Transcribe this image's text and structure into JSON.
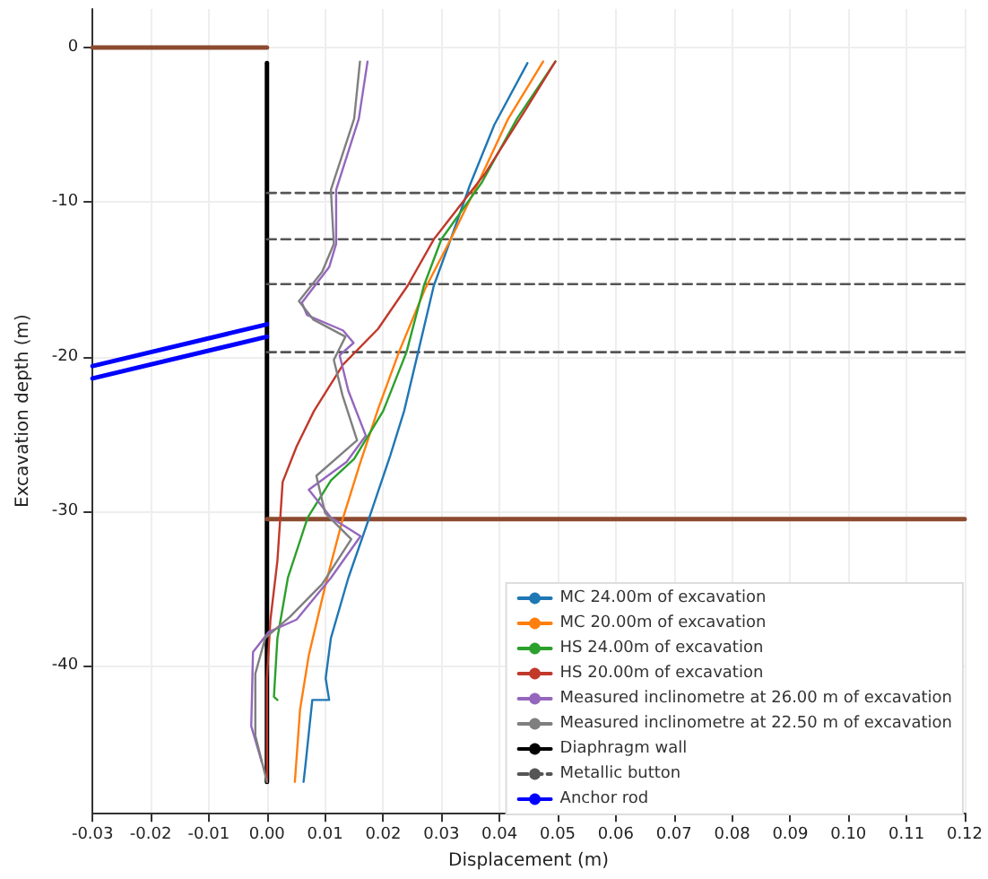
{
  "chart_data": {
    "type": "line",
    "xlabel": "Displacement (m)",
    "ylabel": "Excavation depth (m)",
    "xlim": [
      -0.03,
      0.12
    ],
    "xticks": [
      {
        "value": -0.03,
        "label": "-0.03"
      },
      {
        "value": -0.02,
        "label": "-0.02"
      },
      {
        "value": -0.01,
        "label": "-0.01"
      },
      {
        "value": 0,
        "label": "0.00"
      },
      {
        "value": 0.01,
        "label": "0.01"
      },
      {
        "value": 0.02,
        "label": "0.02"
      },
      {
        "value": 0.03,
        "label": "0.03"
      },
      {
        "value": 0.04,
        "label": "0.04"
      },
      {
        "value": 0.05,
        "label": "0.05"
      },
      {
        "value": 0.06,
        "label": "0.06"
      },
      {
        "value": 0.07,
        "label": "0.07"
      },
      {
        "value": 0.08,
        "label": "0.08"
      },
      {
        "value": 0.09,
        "label": "0.09"
      },
      {
        "value": 0.1,
        "label": "0.10"
      },
      {
        "value": 0.11,
        "label": "0.11"
      },
      {
        "value": 0.12,
        "label": "0.12"
      }
    ],
    "ylim": [
      -49.5,
      2.5
    ],
    "yticks": [
      0,
      -10,
      -20,
      -30,
      -40
    ],
    "grid": true,
    "legend": "bottom right",
    "marker": "none",
    "line_style": "solid",
    "series": [
      {
        "name": "MC 24.00m of excavation",
        "color": "#1f77b4",
        "x": [
          0.0448,
          0.0391,
          0.0349,
          0.0316,
          0.0287,
          0.026,
          0.0236,
          0.0212,
          0.0176,
          0.014,
          0.011,
          0.0101,
          0.0107,
          0.0078,
          0.0066,
          0.0063
        ],
        "values": [
          -1.0,
          -5.0,
          -8.9,
          -12.4,
          -15.4,
          -19.7,
          -23.5,
          -26.4,
          -30.4,
          -34.3,
          -38.2,
          -40.8,
          -42.2,
          -42.2,
          -46.5,
          -47.5
        ]
      },
      {
        "name": "MC 20.00m of excavation",
        "color": "#ff7f0e",
        "x": [
          0.0475,
          0.0415,
          0.0364,
          0.0316,
          0.0272,
          0.0227,
          0.0191,
          0.0161,
          0.0131,
          0.0101,
          0.0072,
          0.0057,
          0.0048
        ],
        "values": [
          -0.9,
          -4.6,
          -8.7,
          -12.4,
          -15.6,
          -19.7,
          -23.4,
          -26.8,
          -30.4,
          -34.7,
          -39.3,
          -42.8,
          -47.5
        ]
      },
      {
        "name": "HS 24.00m of excavation",
        "color": "#2ca02c",
        "x": [
          0.0496,
          0.043,
          0.037,
          0.03,
          0.027,
          0.024,
          0.02,
          0.015,
          0.011,
          0.007,
          0.0036,
          0.0018,
          0.0012,
          0.0018
        ],
        "values": [
          -0.9,
          -4.6,
          -8.7,
          -12.4,
          -15.4,
          -19.7,
          -23.5,
          -26.6,
          -28.0,
          -30.4,
          -34.3,
          -38.2,
          -42.0,
          -42.2
        ]
      },
      {
        "name": "HS 20.00m of excavation",
        "color": "#c0392b",
        "x": [
          0.0496,
          0.0445,
          0.0376,
          0.0287,
          0.0242,
          0.0191,
          0.0131,
          0.0081,
          0.0051,
          0.0027,
          0.0018,
          0.0006,
          0.0,
          0.0
        ],
        "values": [
          -0.9,
          -4.0,
          -8.1,
          -12.4,
          -15.4,
          -18.2,
          -20.5,
          -23.5,
          -25.8,
          -28.1,
          -33.2,
          -37.0,
          -40.8,
          -47.5
        ]
      },
      {
        "name": "Measured inclinometre at 26.00 m of excavation",
        "color": "#9467bd",
        "x": [
          0.0173,
          0.0158,
          0.0119,
          0.0119,
          0.0107,
          0.006,
          0.0069,
          0.0131,
          0.0149,
          0.0125,
          0.014,
          0.017,
          0.0137,
          0.0072,
          0.011,
          0.0161,
          0.011,
          0.0051,
          0.0003,
          -0.0024,
          -0.0027,
          -0.0009
        ],
        "values": [
          -0.9,
          -4.6,
          -9.2,
          -12.7,
          -14.2,
          -16.5,
          -17.3,
          -18.3,
          -19.1,
          -19.9,
          -22.2,
          -25.1,
          -26.8,
          -28.6,
          -30.4,
          -31.6,
          -34.3,
          -37.0,
          -37.8,
          -39.1,
          -43.9,
          -46.2
        ]
      },
      {
        "name": "Measured inclinometre at 22.50 m of excavation",
        "color": "#7f7f7f",
        "x": [
          0.016,
          0.015,
          0.011,
          0.0115,
          0.0095,
          0.0055,
          0.008,
          0.0135,
          0.0115,
          0.013,
          0.0155,
          0.0085,
          0.01,
          0.0145,
          0.0095,
          0.004,
          -0.0003,
          -0.002,
          -0.002,
          0.0
        ],
        "values": [
          -0.9,
          -4.6,
          -9.2,
          -12.7,
          -14.5,
          -16.4,
          -17.6,
          -18.7,
          -20.2,
          -22.5,
          -25.4,
          -27.7,
          -30.1,
          -31.8,
          -34.7,
          -36.8,
          -38.2,
          -40.5,
          -44.5,
          -47.5
        ]
      },
      {
        "name": "Diaphragm wall",
        "color": "#000000",
        "x": [
          0,
          0
        ],
        "values": [
          -1,
          -47.5
        ]
      },
      {
        "name": "Metallic button",
        "color": "#555555",
        "line_style": "dashed",
        "x": [
          0,
          0.12
        ],
        "values": [
          -9.4,
          -9.4
        ]
      },
      {
        "color": "#555555",
        "line_style": "dashed",
        "x": [
          0,
          0.12
        ],
        "values": [
          -12.4,
          -12.4
        ]
      },
      {
        "color": "#555555",
        "line_style": "dashed",
        "x": [
          0,
          0.12
        ],
        "values": [
          -15.3,
          -15.3
        ]
      },
      {
        "color": "#555555",
        "line_style": "dashed",
        "x": [
          0,
          0.12
        ],
        "values": [
          -19.7,
          -19.7
        ]
      },
      {
        "name": "Anchor rod",
        "color": "#0000ff",
        "x": [
          -0.03,
          0
        ],
        "values": [
          -20.6,
          -17.9
        ]
      },
      {
        "color": "#0000ff",
        "x": [
          -0.03,
          0
        ],
        "values": [
          -21.4,
          -18.7
        ]
      },
      {
        "color": "#8c4a2f",
        "x": [
          -0.03,
          0
        ],
        "values": [
          0,
          0
        ]
      },
      {
        "color": "#8c4a2f",
        "x": [
          0,
          0.12
        ],
        "values": [
          -30.5,
          -30.5
        ]
      }
    ]
  }
}
